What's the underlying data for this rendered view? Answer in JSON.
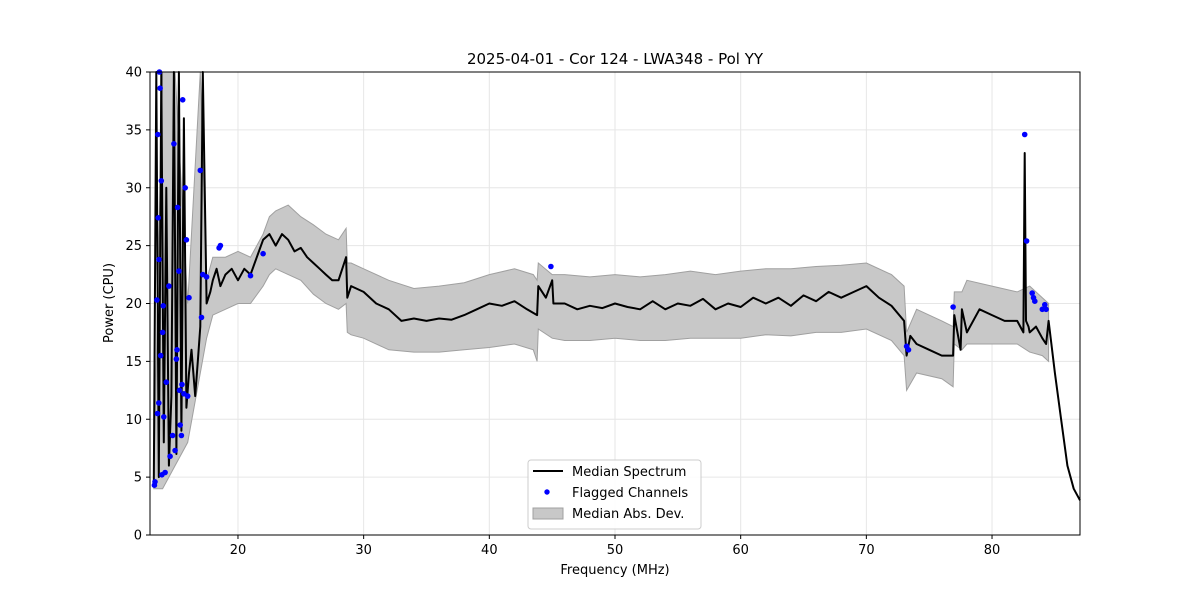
{
  "chart_data": {
    "type": "line",
    "title": "2025-04-01 - Cor 124 - LWA348 - Pol YY",
    "xlabel": "Frequency (MHz)",
    "ylabel": "Power (CPU)",
    "xlim": [
      13,
      87
    ],
    "ylim": [
      0,
      40
    ],
    "xticks": [
      20,
      30,
      40,
      50,
      60,
      70,
      80
    ],
    "yticks": [
      0,
      5,
      10,
      15,
      20,
      25,
      30,
      35,
      40
    ],
    "grid": true,
    "legend_position": "lower-center",
    "colors": {
      "median": "#000000",
      "flagged": "#0000ff",
      "mad_fill": "#c8c8c8",
      "mad_edge": "#a0a0a0"
    },
    "legend": [
      {
        "label": "Median Spectrum",
        "kind": "line"
      },
      {
        "label": "Flagged Channels",
        "kind": "marker"
      },
      {
        "label": "Median Abs. Dev.",
        "kind": "patch"
      }
    ],
    "median_spectrum": {
      "x": [
        13.3,
        13.5,
        13.7,
        13.9,
        14.1,
        14.3,
        14.5,
        14.7,
        14.9,
        15.1,
        15.3,
        15.5,
        15.7,
        15.9,
        16.1,
        16.3,
        16.6,
        16.8,
        17.0,
        17.2,
        17.5,
        17.8,
        18.0,
        18.3,
        18.6,
        19.0,
        19.5,
        20.0,
        20.5,
        21.0,
        21.5,
        22.0,
        22.5,
        23.0,
        23.5,
        24.0,
        24.5,
        25.0,
        25.5,
        26.0,
        26.5,
        27.0,
        27.5,
        28.0,
        28.6,
        28.7,
        29.0,
        30.0,
        31.0,
        32.0,
        33.0,
        34.0,
        35.0,
        36.0,
        37.0,
        38.0,
        39.0,
        40.0,
        41.0,
        42.0,
        43.0,
        43.8,
        43.9,
        44.5,
        45.0,
        45.1,
        46.0,
        47.0,
        48.0,
        49.0,
        50.0,
        51.0,
        52.0,
        53.0,
        54.0,
        55.0,
        56.0,
        57.0,
        58.0,
        59.0,
        60.0,
        61.0,
        62.0,
        63.0,
        64.0,
        65.0,
        66.0,
        67.0,
        68.0,
        69.0,
        70.0,
        71.0,
        72.0,
        73.0,
        73.2,
        73.5,
        74.0,
        75.0,
        76.0,
        76.9,
        77.0,
        77.5,
        77.6,
        78.0,
        79.0,
        80.0,
        81.0,
        82.0,
        82.5,
        82.6,
        82.7,
        82.9,
        83.0,
        83.5,
        84.0,
        84.3,
        84.5,
        85.0,
        85.5,
        86.0,
        86.5,
        87.0
      ],
      "y": [
        4.5,
        40,
        5,
        40,
        8,
        30,
        6,
        12,
        40,
        7,
        40,
        9,
        36,
        11,
        14,
        16,
        12,
        15,
        18,
        40,
        20,
        21,
        22,
        23,
        21.5,
        22.5,
        23,
        22,
        23,
        22.5,
        24,
        25.5,
        26,
        25,
        26,
        25.5,
        24.5,
        24.8,
        24,
        23.5,
        23,
        22.5,
        22,
        22,
        24,
        20.5,
        21.5,
        21,
        20,
        19.5,
        18.5,
        18.7,
        18.5,
        18.7,
        18.6,
        19,
        19.5,
        20,
        19.8,
        20.2,
        19.5,
        19,
        21.5,
        20.5,
        22,
        20,
        20,
        19.5,
        19.8,
        19.6,
        20,
        19.7,
        19.5,
        20.2,
        19.5,
        20,
        19.8,
        20.4,
        19.5,
        20,
        19.7,
        20.5,
        20,
        20.5,
        19.8,
        20.7,
        20.2,
        21,
        20.5,
        21,
        21.5,
        20.5,
        19.8,
        18.5,
        15.5,
        17.2,
        16.5,
        16,
        15.5,
        15.5,
        19,
        16,
        19.5,
        17.5,
        19.5,
        19,
        18.5,
        18.5,
        17.5,
        33,
        18.5,
        18,
        17.5,
        18,
        17,
        16.5,
        18.5,
        14,
        10,
        6,
        4,
        3
      ]
    },
    "mad_band": {
      "x": [
        13.3,
        14.0,
        15.0,
        16.0,
        17.0,
        17.5,
        18.0,
        19.0,
        20.0,
        21.0,
        22.0,
        22.5,
        23.0,
        24.0,
        25.0,
        26.0,
        27.0,
        28.0,
        28.6,
        28.7,
        29.0,
        30.0,
        32.0,
        34.0,
        36.0,
        38.0,
        40.0,
        42.0,
        43.5,
        43.8,
        43.9,
        45.0,
        46.0,
        48.0,
        50.0,
        52.0,
        54.0,
        56.0,
        58.0,
        60.0,
        62.0,
        64.0,
        66.0,
        68.0,
        70.0,
        72.0,
        73.0,
        73.2,
        74.0,
        76.0,
        76.9,
        77.0,
        77.6,
        78.0,
        80.0,
        82.0,
        83.0,
        84.0,
        84.5
      ],
      "upper": [
        5,
        40,
        40,
        20,
        40,
        22,
        24,
        24,
        24.5,
        24,
        26,
        27.5,
        28,
        28.5,
        27.5,
        26.8,
        26,
        25.5,
        26.5,
        23.5,
        23.5,
        23,
        22,
        21.3,
        21.5,
        21.8,
        22.5,
        23,
        22.5,
        22,
        23.5,
        22.5,
        22.5,
        22.3,
        22.5,
        22.3,
        22.5,
        22.8,
        22.5,
        22.8,
        23,
        23,
        23.2,
        23.3,
        23.5,
        22.5,
        21.5,
        17.5,
        19.5,
        18.5,
        18,
        21,
        21,
        22,
        21.5,
        21,
        21.5,
        20.5,
        20
      ],
      "lower": [
        4,
        4,
        6,
        8,
        14,
        17,
        19,
        19.5,
        20,
        20,
        21.5,
        22.5,
        23,
        22.5,
        22,
        20.8,
        20,
        19.5,
        20,
        17.5,
        17.3,
        17,
        16,
        15.8,
        15.8,
        16,
        16.2,
        16.5,
        16,
        15,
        17.8,
        17,
        16.8,
        16.8,
        17,
        16.8,
        16.8,
        17,
        17,
        17,
        17.3,
        17.2,
        17.5,
        17.5,
        17.8,
        16.8,
        15.5,
        12.5,
        14,
        13.5,
        12.8,
        16.5,
        16,
        16.5,
        16.5,
        16.5,
        15.8,
        15.5,
        15
      ]
    },
    "flagged_channels": {
      "x": [
        13.35,
        13.4,
        13.55,
        13.6,
        13.62,
        13.65,
        13.7,
        13.72,
        13.75,
        13.8,
        13.85,
        13.9,
        13.95,
        14.0,
        14.05,
        14.1,
        14.2,
        14.3,
        14.5,
        14.6,
        14.8,
        14.9,
        15.0,
        15.1,
        15.15,
        15.2,
        15.3,
        15.35,
        15.4,
        15.5,
        15.55,
        15.6,
        15.7,
        15.8,
        15.9,
        16.0,
        16.1,
        17.0,
        17.1,
        17.2,
        17.5,
        18.5,
        18.6,
        21.0,
        22.0,
        44.9,
        73.2,
        73.35,
        76.9,
        82.6,
        82.75,
        83.2,
        83.3,
        83.4,
        84.0,
        84.2,
        84.3
      ],
      "y": [
        4.3,
        4.6,
        20.3,
        10.5,
        34.6,
        27.4,
        11.4,
        23.8,
        40,
        38.6,
        15.5,
        30.6,
        5.2,
        17.5,
        19.8,
        10.2,
        5.4,
        13.2,
        21.5,
        6.8,
        8.6,
        33.8,
        7.3,
        15.2,
        16,
        28.3,
        22.8,
        12.5,
        9.5,
        8.6,
        13,
        37.6,
        12.2,
        30,
        25.5,
        12,
        20.5,
        31.5,
        18.8,
        22.5,
        22.3,
        24.8,
        25,
        22.4,
        24.3,
        23.2,
        16.3,
        16,
        19.7,
        34.6,
        25.4,
        20.9,
        20.5,
        20.2,
        19.5,
        19.9,
        19.5
      ]
    }
  }
}
